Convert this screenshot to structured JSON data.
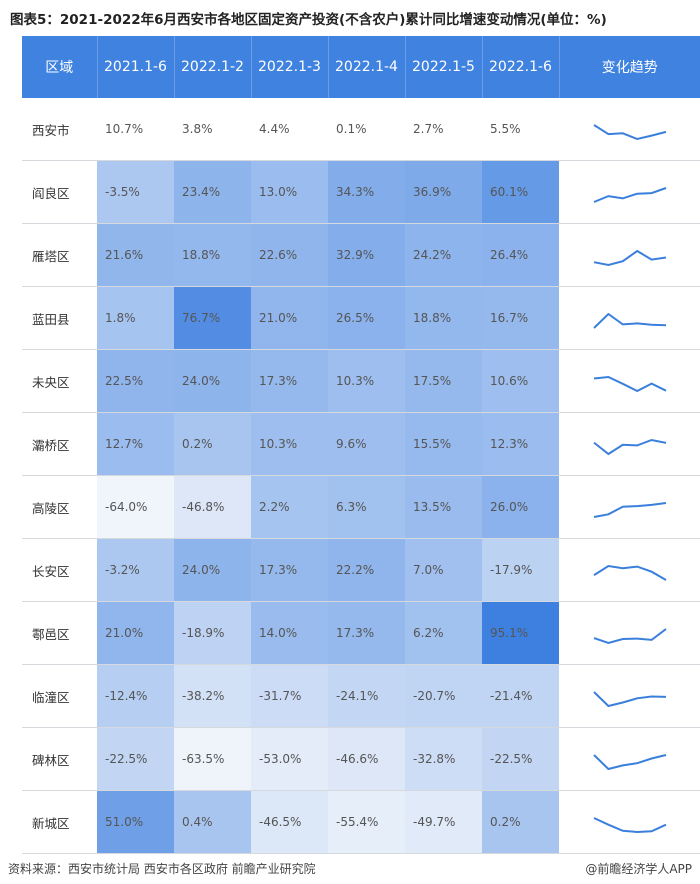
{
  "title": "图表5：2021-2022年6月西安市各地区固定资产投资(不含农户)累计同比增速变动情况(单位：%)",
  "chart_data": {
    "type": "table",
    "header_region": "区域",
    "header_trend": "变化趋势",
    "columns": [
      "2021.1-6",
      "2022.1-2",
      "2022.1-3",
      "2022.1-4",
      "2022.1-5",
      "2022.1-6"
    ],
    "rows": [
      {
        "region": "西安市",
        "values": [
          10.7,
          3.8,
          4.4,
          0.1,
          2.7,
          5.5
        ],
        "labels": [
          "10.7%",
          "3.8%",
          "4.4%",
          "0.1%",
          "2.7%",
          "5.5%"
        ]
      },
      {
        "region": "阎良区",
        "values": [
          -3.5,
          23.4,
          13.0,
          34.3,
          36.9,
          60.1
        ],
        "labels": [
          "-3.5%",
          "23.4%",
          "13.0%",
          "34.3%",
          "36.9%",
          "60.1%"
        ]
      },
      {
        "region": "雁塔区",
        "values": [
          21.6,
          18.8,
          22.6,
          32.9,
          24.2,
          26.4
        ],
        "labels": [
          "21.6%",
          "18.8%",
          "22.6%",
          "32.9%",
          "24.2%",
          "26.4%"
        ]
      },
      {
        "region": "蓝田县",
        "values": [
          1.8,
          76.7,
          21.0,
          26.5,
          18.8,
          16.7
        ],
        "labels": [
          "1.8%",
          "76.7%",
          "21.0%",
          "26.5%",
          "18.8%",
          "16.7%"
        ]
      },
      {
        "region": "未央区",
        "values": [
          22.5,
          24.0,
          17.3,
          10.3,
          17.5,
          10.6
        ],
        "labels": [
          "22.5%",
          "24.0%",
          "17.3%",
          "10.3%",
          "17.5%",
          "10.6%"
        ]
      },
      {
        "region": "灞桥区",
        "values": [
          12.7,
          0.2,
          10.3,
          9.6,
          15.5,
          12.3
        ],
        "labels": [
          "12.7%",
          "0.2%",
          "10.3%",
          "9.6%",
          "15.5%",
          "12.3%"
        ]
      },
      {
        "region": "高陵区",
        "values": [
          -64.0,
          -46.8,
          2.2,
          6.3,
          13.5,
          26.0
        ],
        "labels": [
          "-64.0%",
          "-46.8%",
          "2.2%",
          "6.3%",
          "13.5%",
          "26.0%"
        ]
      },
      {
        "region": "长安区",
        "values": [
          -3.2,
          24.0,
          17.3,
          22.2,
          7.0,
          -17.9
        ],
        "labels": [
          "-3.2%",
          "24.0%",
          "17.3%",
          "22.2%",
          "7.0%",
          "-17.9%"
        ]
      },
      {
        "region": "鄠邑区",
        "values": [
          21.0,
          -18.9,
          14.0,
          17.3,
          6.2,
          95.1
        ],
        "labels": [
          "21.0%",
          "-18.9%",
          "14.0%",
          "17.3%",
          "6.2%",
          "95.1%"
        ]
      },
      {
        "region": "临潼区",
        "values": [
          -12.4,
          -38.2,
          -31.7,
          -24.1,
          -20.7,
          -21.4
        ],
        "labels": [
          "-12.4%",
          "-38.2%",
          "-31.7%",
          "-24.1%",
          "-20.7%",
          "-21.4%"
        ]
      },
      {
        "region": "碑林区",
        "values": [
          -22.5,
          -63.5,
          -53.0,
          -46.6,
          -32.8,
          -22.5
        ],
        "labels": [
          "-22.5%",
          "-63.5%",
          "-53.0%",
          "-46.6%",
          "-32.8%",
          "-22.5%"
        ]
      },
      {
        "region": "新城区",
        "values": [
          51.0,
          0.4,
          -46.5,
          -55.4,
          -49.7,
          0.2
        ],
        "labels": [
          "51.0%",
          "0.4%",
          "-46.5%",
          "-55.4%",
          "-49.7%",
          "0.2%"
        ]
      }
    ],
    "header_color": "#3f82e0",
    "sparkline_color": "#3a7fdc"
  },
  "footer": {
    "source": "资料来源：西安市统计局 西安市各区政府 前瞻产业研究院",
    "brand": "@前瞻经济学人APP"
  }
}
